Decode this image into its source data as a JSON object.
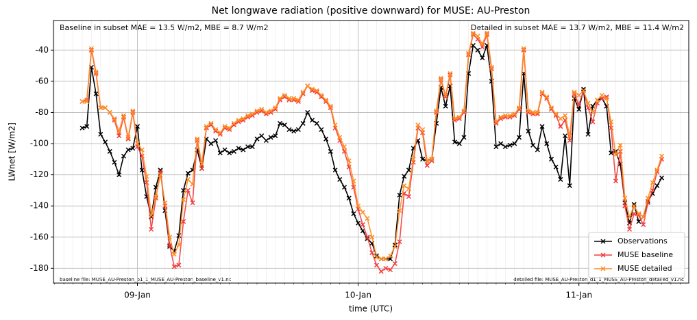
{
  "chart_data": {
    "type": "line",
    "title": "Net longwave radiation (positive downward) for MUSE: AU-Preston",
    "xlabel": "time (UTC)",
    "ylabel": "LWnet [W/m2]",
    "annotations": [
      "Baseline in subset MAE = 13.5 W/m2, MBE = 8.7 W/m2",
      "Detailed in subset MAE = 13.7 W/m2, MBE = 11.4 W/m2",
      "baseline file: MUSE_AU-Preston_b1_1_MUSE_AU-Preston_baseline_v1.nc",
      "detailed file: MUSE_AU-Preston_d1_1_MUSE_AU-Preston_detailed_v1.nc"
    ],
    "categories": [
      null,
      null,
      null,
      null,
      null,
      null,
      null,
      null,
      null,
      null,
      null,
      null,
      "09-Jan",
      null,
      null,
      null,
      null,
      null,
      null,
      null,
      null,
      null,
      null,
      null,
      null,
      null,
      null,
      null,
      null,
      null,
      null,
      null,
      null,
      null,
      null,
      null,
      null,
      null,
      null,
      null,
      null,
      null,
      null,
      null,
      null,
      null,
      null,
      null,
      null,
      null,
      null,
      null,
      null,
      null,
      null,
      null,
      null,
      null,
      null,
      null,
      "10-Jan",
      null,
      null,
      null,
      null,
      null,
      null,
      null,
      null,
      null,
      null,
      null,
      null,
      null,
      null,
      null,
      null,
      null,
      null,
      null,
      null,
      null,
      null,
      null,
      null,
      null,
      null,
      null,
      null,
      null,
      null,
      null,
      null,
      null,
      null,
      null,
      null,
      null,
      null,
      null,
      null,
      null,
      null,
      null,
      null,
      null,
      null,
      null,
      "11-Jan",
      null,
      null,
      null,
      null,
      null,
      null,
      null,
      null,
      null,
      null,
      null,
      null,
      null,
      null,
      null,
      null,
      null,
      null
    ],
    "series": [
      {
        "name": "Observations",
        "color": "#000000",
        "values": [
          -90,
          -89,
          -51,
          -68,
          -94,
          -99,
          -105,
          -112,
          -120,
          -108,
          -104,
          -103,
          -89,
          -117,
          -134,
          -147,
          -128,
          -117,
          -143,
          -166,
          -169,
          -159,
          -130,
          -119,
          -117,
          -104,
          -116,
          -97,
          -100,
          -98,
          -106,
          -104,
          -106,
          -105,
          -103,
          -104,
          -102,
          -102,
          -97,
          -95,
          -98,
          -96,
          -95,
          -87,
          -88,
          -91,
          -92,
          -91,
          -87,
          -80,
          -85,
          -87,
          -91,
          -97,
          -105,
          -117,
          -123,
          -128,
          -135,
          -145,
          -151,
          -156,
          -161,
          -164,
          -172,
          -174,
          -174,
          -174,
          -165,
          -133,
          -121,
          -117,
          -103,
          -98,
          -110,
          -111,
          -110,
          -87,
          -64,
          -76,
          -63,
          -99,
          -100,
          -96,
          -55,
          -37,
          -40,
          -45,
          -37,
          -60,
          -102,
          -100,
          -102,
          -101,
          -100,
          -96,
          -55,
          -92,
          -101,
          -104,
          -89,
          -100,
          -110,
          -115,
          -123,
          -95,
          -127,
          -71,
          -78,
          -65,
          -94,
          -76,
          -72,
          -71,
          -76,
          -106,
          -105,
          -113,
          -138,
          -151,
          -139,
          -150,
          -147,
          -137,
          -132,
          -127,
          -122
        ]
      },
      {
        "name": "MUSE baseline",
        "color": "#f23a3a",
        "values": [
          -73,
          -72,
          -40,
          -55,
          -77,
          -77,
          -80,
          -85,
          -95,
          -83,
          -97,
          -80,
          -102,
          -108,
          -125,
          -155,
          -135,
          -118,
          -140,
          -165,
          -179,
          -178,
          -150,
          -130,
          -138,
          -98,
          -116,
          -90,
          -88,
          -92,
          -94,
          -90,
          -91,
          -88,
          -86,
          -85,
          -83,
          -82,
          -80,
          -79,
          -81,
          -80,
          -78,
          -72,
          -70,
          -72,
          -72,
          -73,
          -68,
          -63,
          -66,
          -67,
          -70,
          -73,
          -77,
          -90,
          -98,
          -105,
          -115,
          -128,
          -142,
          -152,
          -160,
          -170,
          -178,
          -182,
          -180,
          -181,
          -177,
          -163,
          -132,
          -134,
          -112,
          -90,
          -93,
          -114,
          -111,
          -80,
          -59,
          -70,
          -56,
          -85,
          -84,
          -80,
          -43,
          -30,
          -33,
          -38,
          -30,
          -52,
          -87,
          -84,
          -83,
          -83,
          -82,
          -78,
          -40,
          -80,
          -81,
          -81,
          -68,
          -71,
          -78,
          -82,
          -89,
          -85,
          -98,
          -68,
          -75,
          -66,
          -77,
          -86,
          -74,
          -71,
          -70,
          -90,
          -124,
          -105,
          -140,
          -155,
          -145,
          -146,
          -152,
          -138,
          -130,
          -118,
          -110
        ]
      },
      {
        "name": "MUSE detailed",
        "color": "#ff8c1f",
        "values": [
          -73,
          -73,
          -39,
          -54,
          -77,
          -77,
          -80,
          -84,
          -92,
          -82,
          -96,
          -79,
          -100,
          -104,
          -121,
          -146,
          -134,
          -120,
          -138,
          -160,
          -171,
          -165,
          -136,
          -123,
          -126,
          -97,
          -113,
          -89,
          -87,
          -91,
          -93,
          -89,
          -90,
          -87,
          -85,
          -84,
          -82,
          -81,
          -79,
          -78,
          -80,
          -79,
          -77,
          -71,
          -69,
          -71,
          -71,
          -72,
          -67,
          -63,
          -65,
          -66,
          -69,
          -72,
          -76,
          -88,
          -96,
          -102,
          -111,
          -124,
          -140,
          -144,
          -148,
          -160,
          -173,
          -174,
          -174,
          -172,
          -166,
          -143,
          -127,
          -129,
          -110,
          -88,
          -91,
          -111,
          -110,
          -79,
          -58,
          -69,
          -55,
          -84,
          -83,
          -79,
          -42,
          -29,
          -31,
          -36,
          -29,
          -51,
          -86,
          -83,
          -82,
          -82,
          -81,
          -77,
          -39,
          -79,
          -80,
          -80,
          -67,
          -70,
          -77,
          -81,
          -84,
          -82,
          -95,
          -67,
          -69,
          -66,
          -74,
          -80,
          -72,
          -69,
          -71,
          -86,
          -107,
          -101,
          -135,
          -147,
          -140,
          -145,
          -147,
          -135,
          -125,
          -117,
          -108
        ]
      }
    ],
    "ylim": [
      -189.5,
      -21
    ],
    "yticks": [
      -180,
      -160,
      -140,
      -120,
      -100,
      -80,
      -60,
      -40
    ],
    "grid": true,
    "legend": "lower right"
  }
}
